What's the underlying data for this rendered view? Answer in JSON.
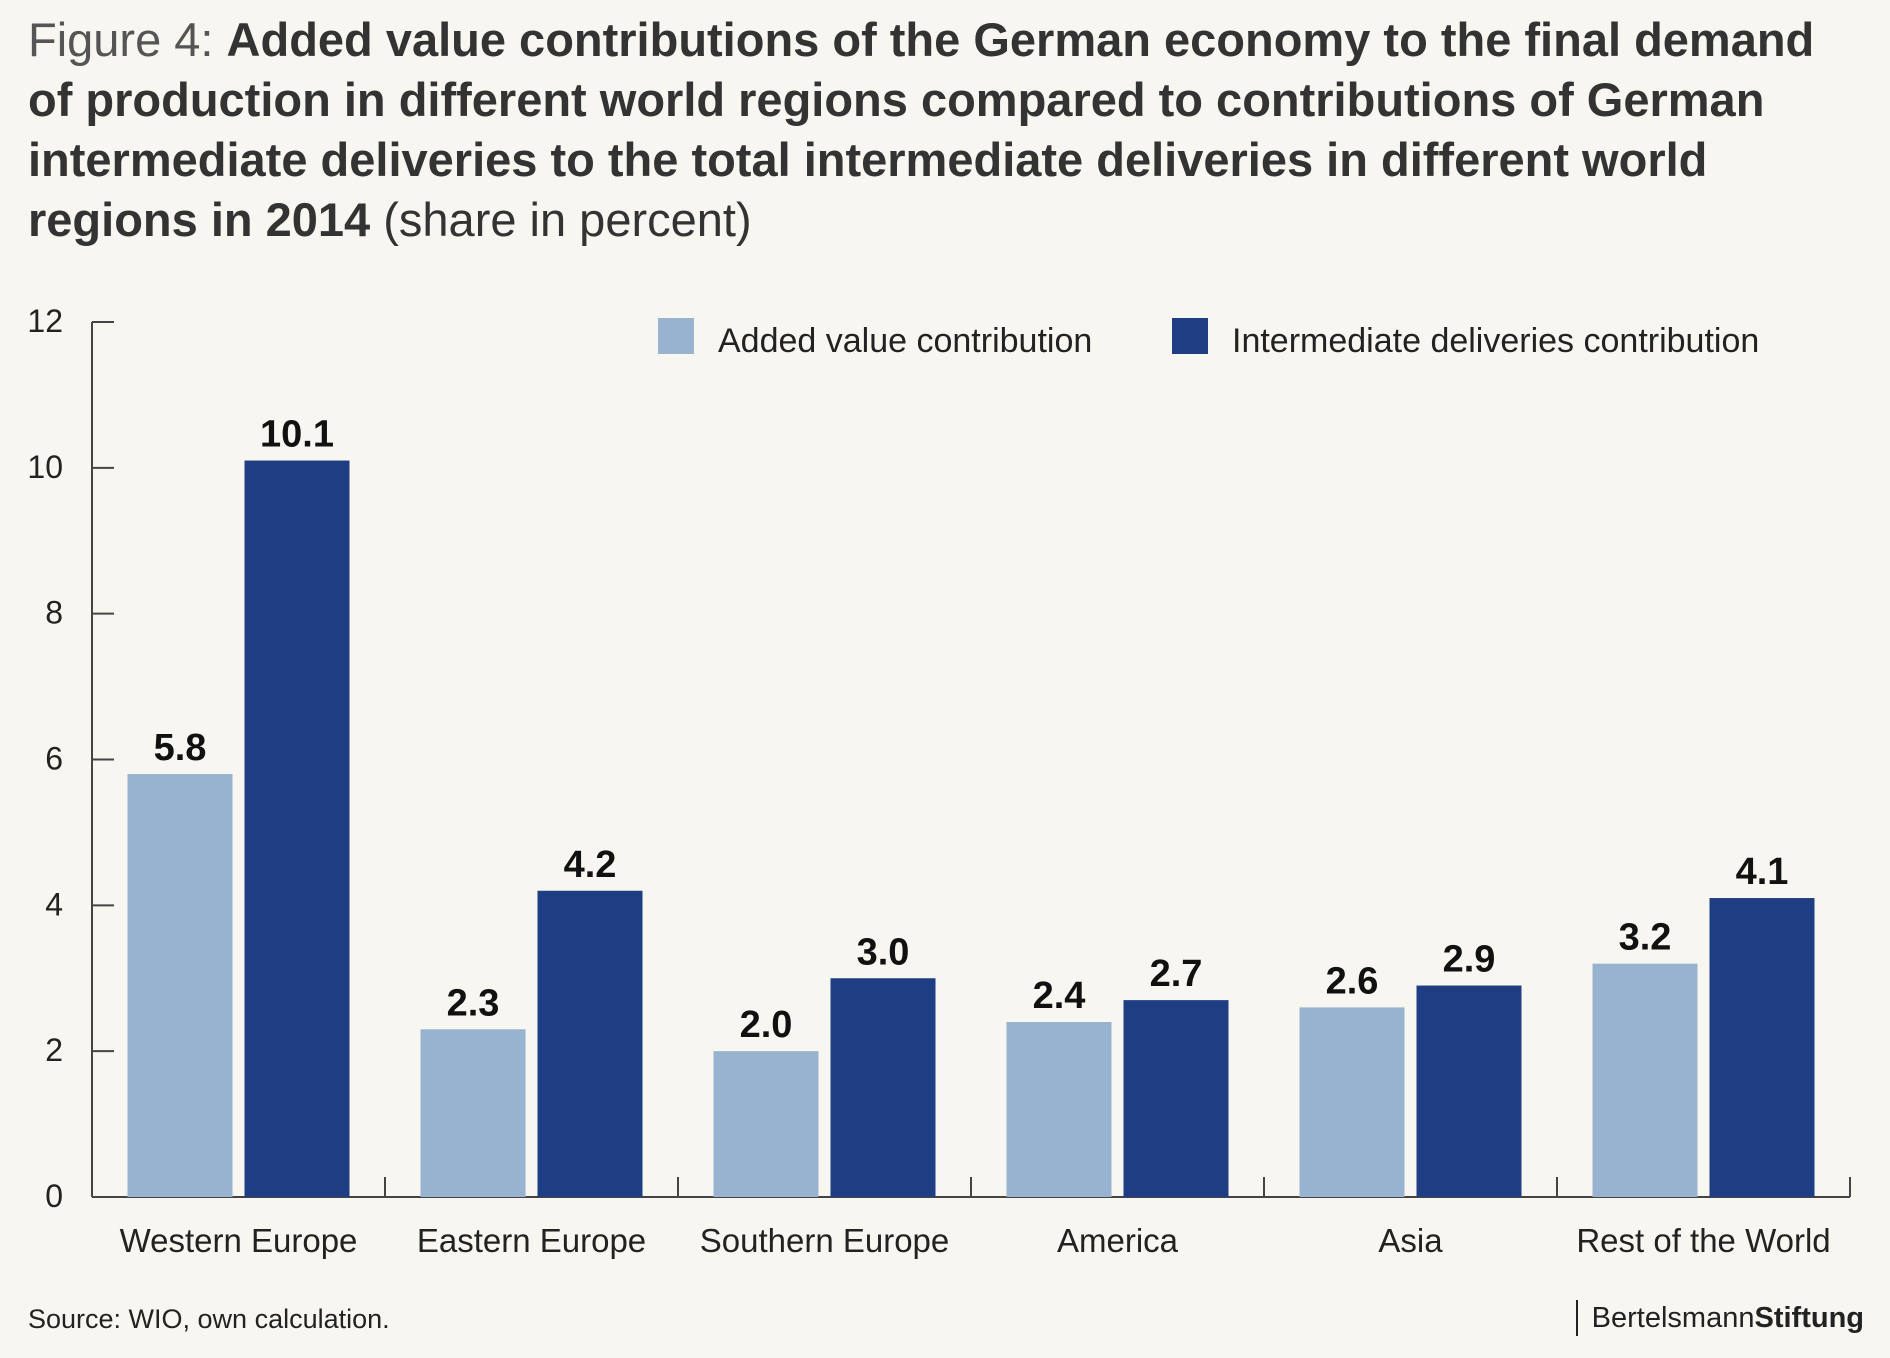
{
  "title": {
    "figure_label": "Figure 4: ",
    "main": "Added value contributions of the German economy to the final demand of production in different world regions compared to contributions of German intermediate deliveries to the total intermediate deliveries in different world regions in 2014",
    "unit": " (share in percent)"
  },
  "footer": {
    "source": "Source: WIO, own calculation.",
    "brand_part1": "Bertelsmann",
    "brand_part2": "Stiftung"
  },
  "colors": {
    "added_value": "#97b3cf",
    "intermediate": "#1f3d82",
    "axis": "#444444",
    "background": "#f8f6f0"
  },
  "chart_data": {
    "type": "bar",
    "categories": [
      "Western Europe",
      "Eastern Europe",
      "Southern Europe",
      "America",
      "Asia",
      "Rest of the World"
    ],
    "series": [
      {
        "name": "Added value contribution",
        "values": [
          5.8,
          2.3,
          2.0,
          2.4,
          2.6,
          3.2
        ],
        "labels": [
          "5.8",
          "2.3",
          "2.0",
          "2.4",
          "2.6",
          "3.2"
        ]
      },
      {
        "name": "Intermediate deliveries contribution",
        "values": [
          10.1,
          4.2,
          3.0,
          2.7,
          2.9,
          4.1
        ],
        "labels": [
          "10.1",
          "4.2",
          "3.0",
          "2.7",
          "2.9",
          "4.1"
        ]
      }
    ],
    "yticks": [
      "0",
      "2",
      "4",
      "6",
      "8",
      "10",
      "12"
    ],
    "ylim": [
      0,
      12
    ],
    "legend": "top-right",
    "grid": false
  }
}
